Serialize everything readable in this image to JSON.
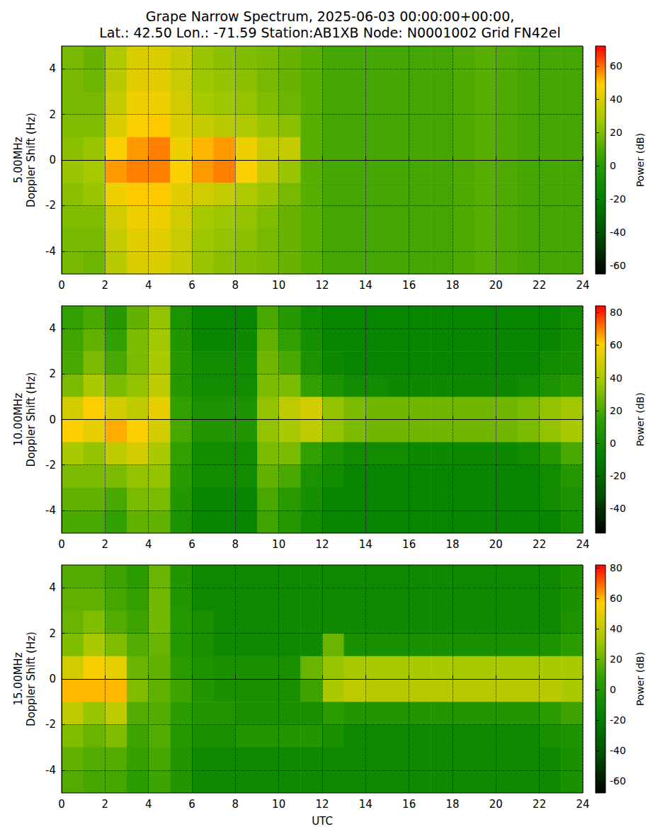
{
  "chart_data": [
    {
      "type": "heatmap",
      "title": "Grape Narrow Spectrum, 2025-06-03 00:00:00+00:00,\nLat.: 42.50 Lon.: -71.59 Station:AB1XB Node: N0001002 Grid FN42el",
      "ylabel": "5.00MHz\nDoppler Shift (Hz)",
      "xlim": [
        0,
        24
      ],
      "xticks": [
        0,
        2,
        4,
        6,
        8,
        10,
        12,
        14,
        16,
        18,
        20,
        22,
        24
      ],
      "ylim": [
        -5,
        5
      ],
      "yticks": [
        -4,
        -2,
        0,
        2,
        4
      ],
      "grid": true,
      "x": [
        0.5,
        1.5,
        2.5,
        3.5,
        4.5,
        5.5,
        6.5,
        7.5,
        8.5,
        9.5,
        10.5,
        11.5,
        12.5,
        13.5,
        14.5,
        15.5,
        16.5,
        17.5,
        18.5,
        19.5,
        20.5,
        21.5,
        22.5,
        23.5
      ],
      "y": [
        4.5,
        3.5,
        2.5,
        1.5,
        0.5,
        -0.5,
        -1.5,
        -2.5,
        -3.5,
        -4.5
      ],
      "z": [
        [
          18,
          15,
          30,
          40,
          40,
          35,
          25,
          22,
          20,
          18,
          15,
          12,
          8,
          8,
          8,
          8,
          8,
          8,
          10,
          12,
          10,
          8,
          8,
          8
        ],
        [
          18,
          16,
          32,
          42,
          42,
          36,
          26,
          24,
          22,
          18,
          15,
          12,
          8,
          8,
          8,
          8,
          8,
          8,
          10,
          12,
          10,
          8,
          8,
          8
        ],
        [
          18,
          18,
          35,
          45,
          45,
          38,
          28,
          26,
          24,
          20,
          16,
          12,
          8,
          8,
          8,
          8,
          8,
          8,
          10,
          12,
          10,
          8,
          8,
          8
        ],
        [
          20,
          20,
          40,
          48,
          50,
          40,
          35,
          32,
          30,
          25,
          22,
          12,
          8,
          8,
          8,
          8,
          8,
          8,
          10,
          12,
          10,
          8,
          8,
          8
        ],
        [
          22,
          25,
          48,
          55,
          58,
          45,
          52,
          55,
          45,
          35,
          35,
          12,
          8,
          8,
          8,
          8,
          8,
          8,
          10,
          12,
          10,
          8,
          8,
          8
        ],
        [
          25,
          28,
          55,
          58,
          58,
          48,
          55,
          58,
          48,
          35,
          25,
          12,
          8,
          8,
          8,
          8,
          8,
          8,
          10,
          12,
          10,
          8,
          8,
          8
        ],
        [
          22,
          25,
          45,
          50,
          50,
          42,
          38,
          35,
          30,
          25,
          18,
          12,
          8,
          8,
          8,
          8,
          8,
          8,
          10,
          12,
          10,
          8,
          8,
          8
        ],
        [
          20,
          20,
          38,
          45,
          45,
          38,
          28,
          26,
          24,
          20,
          15,
          12,
          8,
          8,
          8,
          8,
          8,
          8,
          10,
          12,
          10,
          8,
          8,
          8
        ],
        [
          18,
          18,
          35,
          42,
          42,
          36,
          26,
          24,
          22,
          18,
          15,
          12,
          8,
          8,
          8,
          8,
          8,
          8,
          10,
          12,
          10,
          8,
          8,
          8
        ],
        [
          18,
          16,
          32,
          40,
          40,
          35,
          25,
          22,
          20,
          18,
          15,
          12,
          8,
          8,
          8,
          8,
          8,
          8,
          10,
          12,
          10,
          8,
          8,
          8
        ]
      ],
      "colorbar_label": "Power (dB)",
      "zlim": [
        -65,
        72
      ],
      "zticks": [
        -60,
        -40,
        -20,
        0,
        20,
        40,
        60
      ]
    },
    {
      "type": "heatmap",
      "ylabel": "10.00MHz\nDoppler Shift (Hz)",
      "xlim": [
        0,
        24
      ],
      "xticks": [
        0,
        2,
        4,
        6,
        8,
        10,
        12,
        14,
        16,
        18,
        20,
        22,
        24
      ],
      "ylim": [
        -5,
        5
      ],
      "yticks": [
        -4,
        -2,
        0,
        2,
        4
      ],
      "grid": true,
      "x": [
        0.5,
        1.5,
        2.5,
        3.5,
        4.5,
        5.5,
        6.5,
        7.5,
        8.5,
        9.5,
        10.5,
        11.5,
        12.5,
        13.5,
        14.5,
        15.5,
        16.5,
        17.5,
        18.5,
        19.5,
        20.5,
        21.5,
        22.5,
        23.5
      ],
      "y": [
        4.5,
        3.5,
        2.5,
        1.5,
        0.5,
        -0.5,
        -1.5,
        -2.5,
        -3.5,
        -4.5
      ],
      "z": [
        [
          15,
          20,
          10,
          25,
          35,
          5,
          -5,
          -5,
          -5,
          20,
          10,
          0,
          -5,
          -5,
          -5,
          -5,
          -5,
          -5,
          -5,
          -5,
          -5,
          -5,
          -5,
          0
        ],
        [
          18,
          25,
          15,
          30,
          38,
          8,
          -5,
          -5,
          -2,
          25,
          15,
          2,
          -5,
          -5,
          -5,
          -5,
          -5,
          -5,
          -5,
          -5,
          -5,
          -5,
          -5,
          0
        ],
        [
          20,
          30,
          20,
          30,
          40,
          10,
          0,
          0,
          0,
          28,
          20,
          5,
          -2,
          -5,
          -5,
          -5,
          -5,
          -5,
          -5,
          -5,
          -5,
          -5,
          0,
          2
        ],
        [
          30,
          40,
          30,
          35,
          45,
          10,
          0,
          0,
          0,
          30,
          30,
          15,
          5,
          0,
          0,
          -2,
          -2,
          -2,
          -2,
          -2,
          -2,
          0,
          5,
          10
        ],
        [
          50,
          60,
          50,
          45,
          55,
          15,
          5,
          5,
          5,
          35,
          45,
          50,
          35,
          30,
          28,
          28,
          28,
          28,
          28,
          28,
          28,
          30,
          35,
          38
        ],
        [
          60,
          55,
          65,
          60,
          50,
          20,
          8,
          8,
          8,
          35,
          40,
          45,
          35,
          30,
          28,
          28,
          28,
          28,
          28,
          28,
          28,
          30,
          35,
          40
        ],
        [
          40,
          35,
          45,
          50,
          40,
          15,
          0,
          0,
          0,
          30,
          30,
          15,
          5,
          0,
          0,
          0,
          -2,
          -2,
          -2,
          -2,
          -2,
          0,
          10,
          20
        ],
        [
          30,
          30,
          30,
          35,
          35,
          12,
          0,
          0,
          0,
          25,
          20,
          5,
          0,
          -5,
          -5,
          -5,
          -5,
          -5,
          -5,
          -5,
          -5,
          -5,
          0,
          10
        ],
        [
          25,
          25,
          20,
          30,
          30,
          8,
          -5,
          -5,
          -5,
          20,
          12,
          2,
          -5,
          -5,
          -5,
          -5,
          -5,
          -5,
          -5,
          -5,
          -5,
          -5,
          0,
          5
        ],
        [
          20,
          20,
          15,
          25,
          25,
          5,
          -5,
          -5,
          -5,
          18,
          10,
          0,
          -5,
          -5,
          -5,
          -5,
          -5,
          -5,
          -5,
          -5,
          -5,
          -5,
          -5,
          2
        ]
      ],
      "colorbar_label": "Power (dB)",
      "zlim": [
        -55,
        84
      ],
      "zticks": [
        -40,
        -20,
        0,
        20,
        40,
        60,
        80
      ]
    },
    {
      "type": "heatmap",
      "xlabel": "UTC",
      "ylabel": "15.00MHz\nDoppler Shift (Hz)",
      "xlim": [
        0,
        24
      ],
      "xticks": [
        0,
        2,
        4,
        6,
        8,
        10,
        12,
        14,
        16,
        18,
        20,
        22,
        24
      ],
      "ylim": [
        -5,
        5
      ],
      "yticks": [
        -4,
        -2,
        0,
        2,
        4
      ],
      "grid": true,
      "x": [
        0.5,
        1.5,
        2.5,
        3.5,
        4.5,
        5.5,
        6.5,
        7.5,
        8.5,
        9.5,
        10.5,
        11.5,
        12.5,
        13.5,
        14.5,
        15.5,
        16.5,
        17.5,
        18.5,
        19.5,
        20.5,
        21.5,
        22.5,
        23.5
      ],
      "y": [
        4.5,
        3.5,
        2.5,
        1.5,
        0.5,
        -0.5,
        -1.5,
        -2.5,
        -3.5,
        -4.5
      ],
      "z": [
        [
          15,
          15,
          10,
          5,
          20,
          0,
          -10,
          -10,
          -10,
          -10,
          -10,
          -10,
          -10,
          -10,
          -10,
          -10,
          -10,
          -10,
          -10,
          -10,
          -10,
          -10,
          -10,
          -5
        ],
        [
          18,
          18,
          12,
          8,
          22,
          0,
          -10,
          -10,
          -10,
          -10,
          -10,
          -10,
          -10,
          -10,
          -10,
          -10,
          -10,
          -10,
          -10,
          -10,
          -10,
          -10,
          -10,
          -5
        ],
        [
          20,
          25,
          15,
          10,
          22,
          2,
          -5,
          -10,
          -10,
          -10,
          -10,
          -10,
          -10,
          -10,
          -10,
          -10,
          -10,
          -10,
          -10,
          -10,
          -10,
          -10,
          -10,
          -2
        ],
        [
          25,
          35,
          25,
          15,
          20,
          2,
          -5,
          -10,
          -10,
          -10,
          -10,
          -10,
          20,
          -5,
          -5,
          -5,
          -5,
          -5,
          -5,
          -5,
          -5,
          -5,
          -2,
          5
        ],
        [
          45,
          55,
          50,
          20,
          18,
          5,
          -2,
          -5,
          -5,
          -5,
          -5,
          20,
          30,
          35,
          35,
          35,
          35,
          35,
          35,
          35,
          35,
          35,
          35,
          35
        ],
        [
          60,
          60,
          60,
          25,
          18,
          10,
          0,
          -5,
          -5,
          -5,
          -5,
          10,
          35,
          40,
          38,
          38,
          38,
          38,
          38,
          38,
          38,
          38,
          38,
          35
        ],
        [
          40,
          30,
          40,
          15,
          15,
          5,
          0,
          0,
          -5,
          -5,
          -5,
          -5,
          5,
          0,
          0,
          0,
          0,
          0,
          0,
          0,
          0,
          0,
          5,
          10
        ],
        [
          25,
          20,
          25,
          10,
          15,
          2,
          -5,
          -5,
          0,
          0,
          0,
          0,
          -5,
          -10,
          -10,
          -10,
          -10,
          -10,
          -10,
          -10,
          -10,
          -10,
          -5,
          -2
        ],
        [
          18,
          15,
          15,
          8,
          12,
          0,
          -10,
          -10,
          -10,
          -10,
          -10,
          -10,
          -10,
          -10,
          -10,
          -10,
          -10,
          -10,
          -10,
          -10,
          -10,
          -10,
          -10,
          -5
        ],
        [
          15,
          12,
          12,
          5,
          10,
          0,
          -10,
          -10,
          -10,
          -10,
          -10,
          -10,
          -10,
          -10,
          -10,
          -10,
          -10,
          -10,
          -10,
          -10,
          -10,
          -10,
          -10,
          -5
        ]
      ],
      "colorbar_label": "Power (dB)",
      "zlim": [
        -68,
        82
      ],
      "zticks": [
        -60,
        -40,
        -20,
        0,
        20,
        40,
        60,
        80
      ]
    }
  ]
}
